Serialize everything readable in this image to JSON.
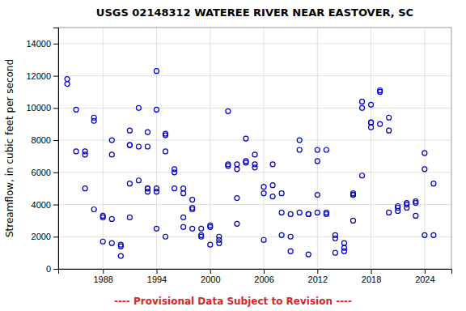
{
  "chart_data": {
    "type": "scatter",
    "title": "USGS 02148312 WATEREE RIVER NEAR EASTOVER, SC",
    "ylabel": "Streamflow, in cubic feet per second",
    "footnote": "---- Provisional Data Subject to Revision ----",
    "color": "#0000CC",
    "marker": "open-circle",
    "grid": true,
    "xlim": [
      1983,
      2027
    ],
    "ylim": [
      0,
      15000
    ],
    "xticks": [
      1988,
      1994,
      2000,
      2006,
      2012,
      2018,
      2024
    ],
    "yticks": [
      0,
      2000,
      4000,
      6000,
      8000,
      10000,
      12000,
      14000
    ],
    "x": [
      1984,
      1984,
      1985,
      1985,
      1986,
      1986,
      1986,
      1987,
      1987,
      1987,
      1988,
      1988,
      1988,
      1989,
      1989,
      1989,
      1989,
      1990,
      1990,
      1990,
      1991,
      1991,
      1991,
      1991,
      1991,
      1992,
      1992,
      1992,
      1993,
      1993,
      1993,
      1993,
      1993,
      1994,
      1994,
      1994,
      1994,
      1994,
      1995,
      1995,
      1995,
      1995,
      1996,
      1996,
      1996,
      1997,
      1997,
      1997,
      1997,
      1998,
      1998,
      1998,
      1998,
      1999,
      1999,
      1999,
      2000,
      2000,
      2000,
      2001,
      2001,
      2001,
      2002,
      2002,
      2002,
      2003,
      2003,
      2003,
      2003,
      2004,
      2004,
      2004,
      2005,
      2005,
      2005,
      2006,
      2006,
      2006,
      2007,
      2007,
      2007,
      2008,
      2008,
      2008,
      2009,
      2009,
      2009,
      2010,
      2010,
      2010,
      2011,
      2011,
      2011,
      2012,
      2012,
      2012,
      2012,
      2013,
      2013,
      2013,
      2014,
      2014,
      2014,
      2015,
      2015,
      2015,
      2016,
      2016,
      2016,
      2016,
      2017,
      2017,
      2017,
      2018,
      2018,
      2018,
      2018,
      2019,
      2019,
      2019,
      2020,
      2020,
      2020,
      2021,
      2021,
      2021,
      2022,
      2022,
      2022,
      2023,
      2023,
      2023,
      2024,
      2024,
      2024,
      2025,
      2025
    ],
    "values": [
      11800,
      11500,
      9900,
      7300,
      7300,
      7100,
      5000,
      9400,
      9200,
      3700,
      3300,
      3200,
      1700,
      8000,
      7100,
      3100,
      1600,
      1500,
      1400,
      800,
      8600,
      7700,
      7700,
      5300,
      3200,
      10000,
      7600,
      5500,
      8500,
      7600,
      5000,
      5000,
      4800,
      12300,
      9900,
      5000,
      4800,
      2500,
      8400,
      8300,
      7300,
      2000,
      6200,
      6000,
      5000,
      5000,
      4700,
      3200,
      2600,
      4300,
      3800,
      3700,
      2500,
      2500,
      2100,
      2000,
      2700,
      2600,
      1500,
      2000,
      1800,
      1600,
      9800,
      6500,
      6400,
      6500,
      6200,
      4400,
      2800,
      8100,
      6700,
      6600,
      7100,
      6500,
      6300,
      5100,
      4700,
      1800,
      6500,
      5200,
      4500,
      4700,
      3500,
      2100,
      3400,
      2000,
      1100,
      8000,
      7400,
      3500,
      3400,
      3400,
      900,
      7400,
      6700,
      4600,
      3500,
      7400,
      3500,
      3400,
      2100,
      1900,
      1000,
      1600,
      1300,
      1100,
      4700,
      4600,
      4600,
      3000,
      10400,
      10000,
      5800,
      10200,
      9100,
      9100,
      8800,
      11100,
      11000,
      9000,
      9400,
      8600,
      3500,
      3900,
      3800,
      3600,
      4100,
      4000,
      3800,
      4200,
      4100,
      3300,
      7200,
      6200,
      2100,
      5300,
      2100
    ]
  }
}
